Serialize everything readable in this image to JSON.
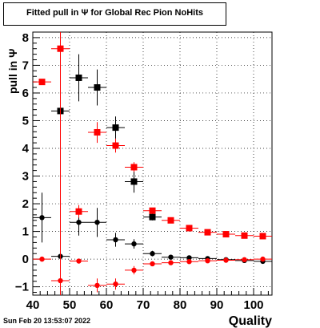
{
  "title": "Fitted pull in  Ψ  for Global Rec Pion NoHits",
  "timestamp": "Sun Feb 20 13:53:07 2022",
  "chart_data": {
    "type": "scatter",
    "xlabel": "Quality",
    "ylabel": "pull in  Ψ",
    "xlim": [
      40,
      105
    ],
    "ylim": [
      -1.3,
      8.2
    ],
    "xticks": [
      40,
      50,
      60,
      70,
      80,
      90,
      100
    ],
    "yticks": [
      -1,
      0,
      1,
      2,
      3,
      4,
      5,
      6,
      7,
      8
    ],
    "grid": true,
    "series": [
      {
        "color": "#000000",
        "marker": "square",
        "points": [
          {
            "x": 47.5,
            "y": 5.35,
            "xerr": 2.5,
            "ylo": 4.3,
            "yhi": 6.4
          },
          {
            "x": 52.5,
            "y": 6.55,
            "xerr": 2.5,
            "ylo": 5.7,
            "yhi": 7.4
          },
          {
            "x": 57.5,
            "y": 6.2,
            "xerr": 2.5,
            "ylo": 5.55,
            "yhi": 6.85
          },
          {
            "x": 62.5,
            "y": 4.75,
            "xerr": 2.5,
            "ylo": 4.35,
            "yhi": 5.15
          },
          {
            "x": 67.5,
            "y": 2.8,
            "xerr": 2.5,
            "ylo": 2.4,
            "yhi": 3.2
          },
          {
            "x": 72.5,
            "y": 1.52,
            "xerr": 2.5,
            "ylo": 1.4,
            "yhi": 1.64
          }
        ]
      },
      {
        "color": "#000000",
        "marker": "circle",
        "points": [
          {
            "x": 42.5,
            "y": 1.5,
            "xerr": 2.5,
            "ylo": 0.6,
            "yhi": 2.4
          },
          {
            "x": 47.5,
            "y": 0.1,
            "xerr": 2.5,
            "ylo": -0.6,
            "yhi": 0.8
          },
          {
            "x": 52.5,
            "y": 1.33,
            "xerr": 2.5,
            "ylo": 0.85,
            "yhi": 1.8
          },
          {
            "x": 57.5,
            "y": 1.33,
            "xerr": 2.5,
            "ylo": 0.8,
            "yhi": 1.85
          },
          {
            "x": 62.5,
            "y": 0.7,
            "xerr": 2.5,
            "ylo": 0.45,
            "yhi": 0.95
          },
          {
            "x": 67.5,
            "y": 0.55,
            "xerr": 2.5,
            "ylo": 0.38,
            "yhi": 0.72
          },
          {
            "x": 72.5,
            "y": 0.2,
            "xerr": 2.5,
            "ylo": 0.1,
            "yhi": 0.3
          },
          {
            "x": 77.5,
            "y": 0.07,
            "xerr": 2.5,
            "ylo": 0.0,
            "yhi": 0.14
          },
          {
            "x": 82.5,
            "y": 0.05,
            "xerr": 2.5,
            "ylo": -0.01,
            "yhi": 0.11
          },
          {
            "x": 87.5,
            "y": 0.02,
            "xerr": 2.5,
            "ylo": -0.03,
            "yhi": 0.07
          },
          {
            "x": 92.5,
            "y": -0.02,
            "xerr": 2.5,
            "ylo": -0.06,
            "yhi": 0.02
          },
          {
            "x": 97.5,
            "y": -0.05,
            "xerr": 2.5,
            "ylo": -0.09,
            "yhi": -0.01
          },
          {
            "x": 102.5,
            "y": -0.08,
            "xerr": 2.5,
            "ylo": -0.12,
            "yhi": -0.04
          }
        ]
      },
      {
        "color": "#ff0000",
        "marker": "square",
        "points": [
          {
            "x": 42.5,
            "y": 6.4,
            "xerr": 2.5,
            "ylo": 6.4,
            "yhi": 6.4
          },
          {
            "x": 47.5,
            "y": 7.6,
            "xerr": 2.5,
            "ylo": -1.3,
            "yhi": 8.2
          },
          {
            "x": 52.5,
            "y": 1.72,
            "xerr": 2.5,
            "ylo": 1.5,
            "yhi": 1.95
          },
          {
            "x": 57.5,
            "y": 4.58,
            "xerr": 2.5,
            "ylo": 4.2,
            "yhi": 4.95
          },
          {
            "x": 62.5,
            "y": 4.1,
            "xerr": 2.5,
            "ylo": 3.85,
            "yhi": 4.35
          },
          {
            "x": 67.5,
            "y": 3.32,
            "xerr": 2.5,
            "ylo": 3.15,
            "yhi": 3.5
          },
          {
            "x": 72.5,
            "y": 1.75,
            "xerr": 2.5,
            "ylo": 1.65,
            "yhi": 1.85
          },
          {
            "x": 77.5,
            "y": 1.4,
            "xerr": 2.5,
            "ylo": 1.33,
            "yhi": 1.47
          },
          {
            "x": 82.5,
            "y": 1.12,
            "xerr": 2.5,
            "ylo": 1.07,
            "yhi": 1.17
          },
          {
            "x": 87.5,
            "y": 0.97,
            "xerr": 2.5,
            "ylo": 0.93,
            "yhi": 1.01
          },
          {
            "x": 92.5,
            "y": 0.9,
            "xerr": 2.5,
            "ylo": 0.86,
            "yhi": 0.94
          },
          {
            "x": 97.5,
            "y": 0.85,
            "xerr": 2.5,
            "ylo": 0.81,
            "yhi": 0.89
          },
          {
            "x": 102.5,
            "y": 0.83,
            "xerr": 2.5,
            "ylo": 0.79,
            "yhi": 0.87
          }
        ]
      },
      {
        "color": "#ff0000",
        "marker": "circle",
        "points": [
          {
            "x": 42.5,
            "y": 0.0,
            "xerr": 2.5,
            "ylo": 0.0,
            "yhi": 0.0
          },
          {
            "x": 47.5,
            "y": -0.78,
            "xerr": 2.5,
            "ylo": -1.3,
            "yhi": 0.7
          },
          {
            "x": 52.5,
            "y": -0.07,
            "xerr": 2.5,
            "ylo": -0.15,
            "yhi": 0.01
          },
          {
            "x": 57.5,
            "y": -0.95,
            "xerr": 2.5,
            "ylo": -1.2,
            "yhi": -0.7
          },
          {
            "x": 62.5,
            "y": -0.9,
            "xerr": 2.5,
            "ylo": -1.1,
            "yhi": -0.7
          },
          {
            "x": 67.5,
            "y": -0.4,
            "xerr": 2.5,
            "ylo": -0.55,
            "yhi": -0.25
          },
          {
            "x": 72.5,
            "y": -0.17,
            "xerr": 2.5,
            "ylo": -0.22,
            "yhi": -0.12
          },
          {
            "x": 77.5,
            "y": -0.13,
            "xerr": 2.5,
            "ylo": -0.18,
            "yhi": -0.08
          },
          {
            "x": 82.5,
            "y": -0.09,
            "xerr": 2.5,
            "ylo": -0.13,
            "yhi": -0.05
          },
          {
            "x": 87.5,
            "y": -0.06,
            "xerr": 2.5,
            "ylo": -0.1,
            "yhi": -0.02
          },
          {
            "x": 92.5,
            "y": -0.04,
            "xerr": 2.5,
            "ylo": -0.08,
            "yhi": 0.0
          },
          {
            "x": 97.5,
            "y": -0.02,
            "xerr": 2.5,
            "ylo": -0.06,
            "yhi": 0.02
          },
          {
            "x": 102.5,
            "y": 0.0,
            "xerr": 2.5,
            "ylo": -0.04,
            "yhi": 0.04
          }
        ]
      }
    ]
  }
}
